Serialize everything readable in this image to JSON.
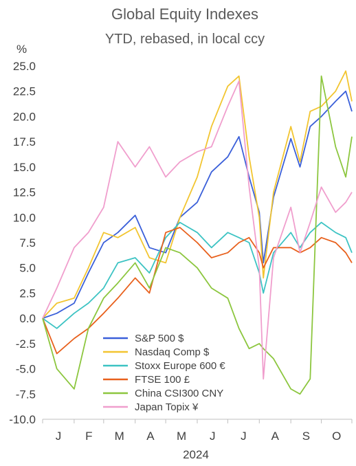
{
  "chart_data": {
    "type": "line",
    "title": "Global Equity Indexes",
    "subtitle": "YTD, rebased, in local ccy",
    "ylabel": "%",
    "xlabel": "2024",
    "ylim": [
      -10,
      25
    ],
    "yticks": [
      "25.0",
      "22.5",
      "20.0",
      "17.5",
      "15.0",
      "12.5",
      "10.0",
      "7.5",
      "5.0",
      "2.5",
      "0.0",
      "-2.5",
      "-5.0",
      "-7.5",
      "-10.0"
    ],
    "negative_tick_color": "#e8000b",
    "tick_color": "#404040",
    "x_month_labels": [
      "J",
      "F",
      "M",
      "A",
      "M",
      "J",
      "J",
      "A",
      "S",
      "O"
    ],
    "legend_position": "bottom-center",
    "grid": false,
    "x": [
      "2024-01-01",
      "2024-01-15",
      "2024-02-01",
      "2024-02-15",
      "2024-03-01",
      "2024-03-15",
      "2024-04-01",
      "2024-04-15",
      "2024-05-01",
      "2024-05-15",
      "2024-06-01",
      "2024-06-15",
      "2024-07-01",
      "2024-07-12",
      "2024-07-22",
      "2024-08-01",
      "2024-08-05",
      "2024-08-15",
      "2024-09-01",
      "2024-09-10",
      "2024-09-20",
      "2024-10-01",
      "2024-10-15",
      "2024-10-25",
      "2024-10-31"
    ],
    "series": [
      {
        "name": "S&P 500 $",
        "color": "#3a5fd9",
        "values": [
          0.0,
          0.5,
          1.5,
          4.5,
          7.5,
          8.5,
          10.2,
          7.0,
          6.5,
          10.0,
          11.5,
          14.5,
          16.0,
          18.0,
          14.0,
          10.5,
          5.5,
          12.0,
          17.8,
          15.0,
          19.0,
          20.0,
          21.5,
          22.5,
          20.5
        ]
      },
      {
        "name": "Nasdaq Comp $",
        "color": "#f2c530",
        "values": [
          0.0,
          1.5,
          2.0,
          5.0,
          8.5,
          8.0,
          9.0,
          6.0,
          5.5,
          10.0,
          14.0,
          19.0,
          23.0,
          24.0,
          16.0,
          10.0,
          4.0,
          12.5,
          19.0,
          15.5,
          20.5,
          21.0,
          22.5,
          24.5,
          21.5
        ]
      },
      {
        "name": "Stoxx Europe 600 €",
        "color": "#3cc3c3",
        "values": [
          0.0,
          -1.0,
          0.5,
          1.5,
          3.0,
          5.5,
          6.0,
          4.5,
          8.0,
          9.5,
          8.5,
          7.0,
          8.5,
          8.0,
          7.5,
          4.5,
          2.5,
          6.5,
          8.5,
          7.0,
          8.5,
          9.5,
          8.5,
          8.0,
          6.5
        ]
      },
      {
        "name": "FTSE 100 £",
        "color": "#e8601c",
        "values": [
          0.0,
          -3.5,
          -2.0,
          -1.0,
          0.5,
          2.0,
          4.0,
          2.5,
          8.5,
          9.0,
          7.5,
          6.0,
          6.5,
          7.5,
          8.0,
          6.5,
          5.0,
          7.0,
          7.0,
          6.5,
          7.0,
          8.0,
          7.5,
          6.5,
          5.5
        ]
      },
      {
        "name": "China CSI300 CNY",
        "color": "#8cc63e",
        "values": [
          0.0,
          -5.0,
          -7.0,
          -1.0,
          2.0,
          3.5,
          5.5,
          3.0,
          7.0,
          6.5,
          5.0,
          3.0,
          2.0,
          -1.0,
          -3.0,
          -2.5,
          -3.0,
          -4.0,
          -7.0,
          -7.5,
          -6.0,
          24.0,
          17.0,
          14.0,
          18.0
        ]
      },
      {
        "name": "Japan Topix ¥",
        "color": "#f09ecd",
        "values": [
          0.0,
          3.0,
          7.0,
          8.5,
          11.0,
          17.5,
          15.0,
          17.0,
          14.0,
          15.5,
          16.5,
          17.0,
          21.0,
          23.5,
          13.0,
          5.0,
          -6.0,
          6.0,
          11.0,
          6.5,
          9.5,
          13.0,
          10.5,
          11.5,
          12.5
        ]
      }
    ]
  }
}
